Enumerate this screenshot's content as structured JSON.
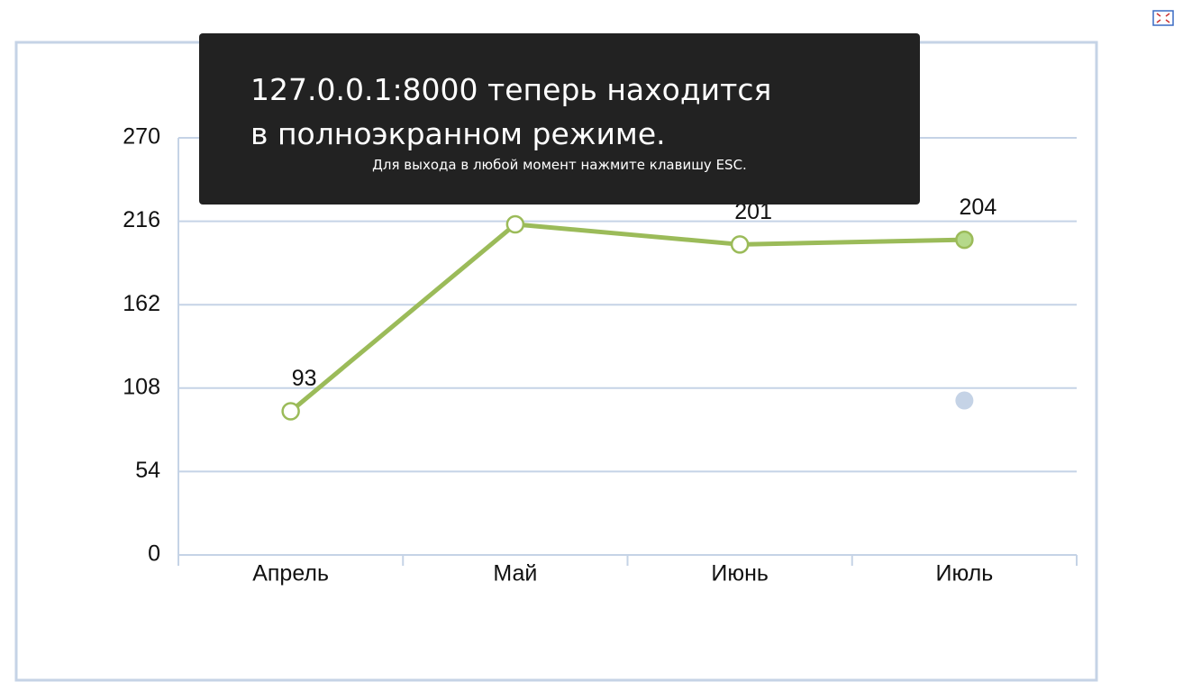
{
  "chart_data": {
    "type": "line",
    "categories": [
      "Апрель",
      "Май",
      "Июнь",
      "Июль"
    ],
    "series": [
      {
        "color": "#9bbb59",
        "values": [
          93,
          214,
          201,
          204
        ],
        "marker_colors": [
          "#ffffff",
          "#ffffff",
          "#ffffff",
          "#b5d98a"
        ]
      },
      {
        "color": "#c5d3e6",
        "values": [
          null,
          null,
          null,
          100
        ]
      }
    ],
    "ylim": [
      0,
      270
    ],
    "yticks": [
      0,
      54,
      108,
      162,
      216,
      270
    ],
    "grid": true
  },
  "overlay": {
    "message": "127.0.0.1:8000 теперь находится в полноэкранном режиме.",
    "hint": "Для выхода в любой момент нажмите клавишу ESC."
  }
}
